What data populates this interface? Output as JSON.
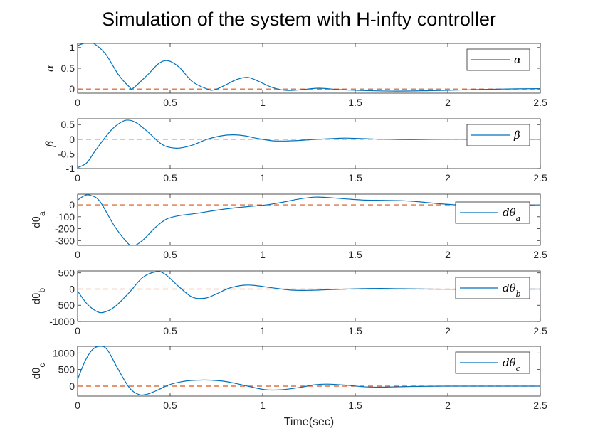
{
  "title": "Simulation of the system with H-infty controller",
  "xlabel": "Time(sec)",
  "colors": {
    "series": "#0072BD",
    "reference": "#D95319",
    "axes": "#262626"
  },
  "chart_data": [
    {
      "type": "line",
      "ylabel": "α",
      "legend": "α",
      "legend_position": "top-right",
      "xlim": [
        0,
        2.5
      ],
      "ylim": [
        -0.1,
        1.1
      ],
      "xticks": [
        "0",
        "0.5",
        "1",
        "1.5",
        "2",
        "2.5"
      ],
      "yticks": [
        {
          "v": 0,
          "label": "0"
        },
        {
          "v": 0.5,
          "label": "0.5"
        },
        {
          "v": 1,
          "label": "1"
        }
      ],
      "reference_line": 0,
      "series": [
        {
          "x": [
            0,
            0.05,
            0.08,
            0.15,
            0.22,
            0.28,
            0.3,
            0.38,
            0.44,
            0.49,
            0.55,
            0.62,
            0.7,
            0.74,
            0.8,
            0.86,
            0.92,
            0.98,
            1.05,
            1.12,
            1.2,
            1.3,
            1.4,
            1.5,
            1.7,
            1.9,
            2.1,
            2.3,
            2.5
          ],
          "y": [
            1.05,
            1.12,
            1.12,
            0.85,
            0.35,
            0.05,
            0.02,
            0.35,
            0.62,
            0.68,
            0.52,
            0.18,
            0.0,
            -0.02,
            0.1,
            0.23,
            0.28,
            0.18,
            0.04,
            -0.03,
            -0.02,
            0.02,
            -0.01,
            -0.03,
            -0.05,
            -0.04,
            -0.02,
            0.0,
            0.01
          ]
        }
      ]
    },
    {
      "type": "line",
      "ylabel": "β",
      "legend": "β",
      "legend_position": "top-right",
      "xlim": [
        0,
        2.5
      ],
      "ylim": [
        -1.0,
        0.7
      ],
      "xticks": [
        "0",
        "0.5",
        "1",
        "1.5",
        "2",
        "2.5"
      ],
      "yticks": [
        {
          "v": -1,
          "label": "-1"
        },
        {
          "v": -0.5,
          "label": "-0.5"
        },
        {
          "v": 0,
          "label": "0"
        },
        {
          "v": 0.5,
          "label": "0.5"
        }
      ],
      "reference_line": 0,
      "series": [
        {
          "x": [
            0,
            0.05,
            0.1,
            0.18,
            0.24,
            0.28,
            0.32,
            0.38,
            0.45,
            0.5,
            0.55,
            0.62,
            0.7,
            0.78,
            0.84,
            0.9,
            0.97,
            1.05,
            1.12,
            1.2,
            1.3,
            1.4,
            1.45,
            1.55,
            1.65,
            1.8,
            2.0,
            2.2,
            2.5
          ],
          "y": [
            -0.97,
            -0.8,
            -0.35,
            0.3,
            0.6,
            0.65,
            0.55,
            0.25,
            -0.15,
            -0.28,
            -0.3,
            -0.2,
            0.0,
            0.12,
            0.15,
            0.12,
            0.03,
            -0.05,
            -0.06,
            -0.04,
            0.0,
            0.03,
            0.04,
            0.02,
            0.0,
            -0.01,
            0.0,
            0.0,
            0.0
          ]
        }
      ]
    },
    {
      "type": "line",
      "ylabel": "dθa",
      "legend": "dθa",
      "legend_position": "right",
      "xlim": [
        0,
        2.5
      ],
      "ylim": [
        -340,
        90
      ],
      "xticks": [
        "0",
        "0.5",
        "1",
        "1.5",
        "2",
        "2.5"
      ],
      "yticks": [
        {
          "v": -300,
          "label": "-300"
        },
        {
          "v": -200,
          "label": "-200"
        },
        {
          "v": -100,
          "label": "-100"
        },
        {
          "v": 0,
          "label": "0"
        }
      ],
      "reference_line": 0,
      "series": [
        {
          "x": [
            0,
            0.04,
            0.07,
            0.12,
            0.2,
            0.27,
            0.3,
            0.35,
            0.42,
            0.48,
            0.55,
            0.65,
            0.75,
            0.85,
            0.95,
            1.02,
            1.1,
            1.2,
            1.28,
            1.35,
            1.45,
            1.55,
            1.65,
            1.75,
            1.85,
            1.95,
            2.05,
            2.15,
            2.3,
            2.5
          ],
          "y": [
            40,
            80,
            80,
            30,
            -180,
            -320,
            -345,
            -300,
            -190,
            -120,
            -90,
            -70,
            -45,
            -25,
            -10,
            0,
            20,
            50,
            65,
            62,
            50,
            40,
            38,
            35,
            25,
            10,
            0,
            -5,
            -5,
            0
          ]
        }
      ]
    },
    {
      "type": "line",
      "ylabel": "dθb",
      "legend": "dθb",
      "legend_position": "right",
      "xlim": [
        0,
        2.5
      ],
      "ylim": [
        -1000,
        560
      ],
      "xticks": [
        "0",
        "0.5",
        "1",
        "1.5",
        "2",
        "2.5"
      ],
      "yticks": [
        {
          "v": -1000,
          "label": "-1000"
        },
        {
          "v": -500,
          "label": "-500"
        },
        {
          "v": 0,
          "label": "0"
        },
        {
          "v": 500,
          "label": "500"
        }
      ],
      "reference_line": 0,
      "series": [
        {
          "x": [
            0,
            0.05,
            0.1,
            0.14,
            0.2,
            0.28,
            0.35,
            0.42,
            0.47,
            0.55,
            0.62,
            0.69,
            0.75,
            0.82,
            0.9,
            0.96,
            1.05,
            1.15,
            1.25,
            1.35,
            1.45,
            1.55,
            1.65,
            1.75,
            1.9,
            2.1,
            2.3,
            2.5
          ],
          "y": [
            -60,
            -450,
            -680,
            -720,
            -550,
            -100,
            350,
            530,
            470,
            60,
            -250,
            -280,
            -150,
            30,
            120,
            110,
            40,
            -30,
            -40,
            -20,
            0,
            15,
            20,
            10,
            0,
            -5,
            0,
            0
          ]
        }
      ]
    },
    {
      "type": "line",
      "ylabel": "dθc",
      "legend": "dθc",
      "legend_position": "right",
      "xlim": [
        0,
        2.5
      ],
      "ylim": [
        -300,
        1200
      ],
      "xticks": [
        "0",
        "0.5",
        "1",
        "1.5",
        "2",
        "2.5"
      ],
      "yticks": [
        {
          "v": 0,
          "label": "0"
        },
        {
          "v": 500,
          "label": "500"
        },
        {
          "v": 1000,
          "label": "1000"
        }
      ],
      "reference_line": 0,
      "series": [
        {
          "x": [
            0,
            0.04,
            0.08,
            0.12,
            0.16,
            0.22,
            0.28,
            0.33,
            0.37,
            0.42,
            0.5,
            0.58,
            0.65,
            0.72,
            0.8,
            0.88,
            0.95,
            1.02,
            1.1,
            1.2,
            1.28,
            1.35,
            1.45,
            1.55,
            1.65,
            1.8,
            2.0,
            2.2,
            2.5
          ],
          "y": [
            200,
            750,
            1100,
            1200,
            1100,
            500,
            -50,
            -250,
            -250,
            -150,
            50,
            150,
            180,
            180,
            140,
            50,
            -40,
            -110,
            -110,
            -40,
            40,
            60,
            30,
            -20,
            -30,
            -10,
            0,
            0,
            0
          ]
        }
      ]
    }
  ]
}
